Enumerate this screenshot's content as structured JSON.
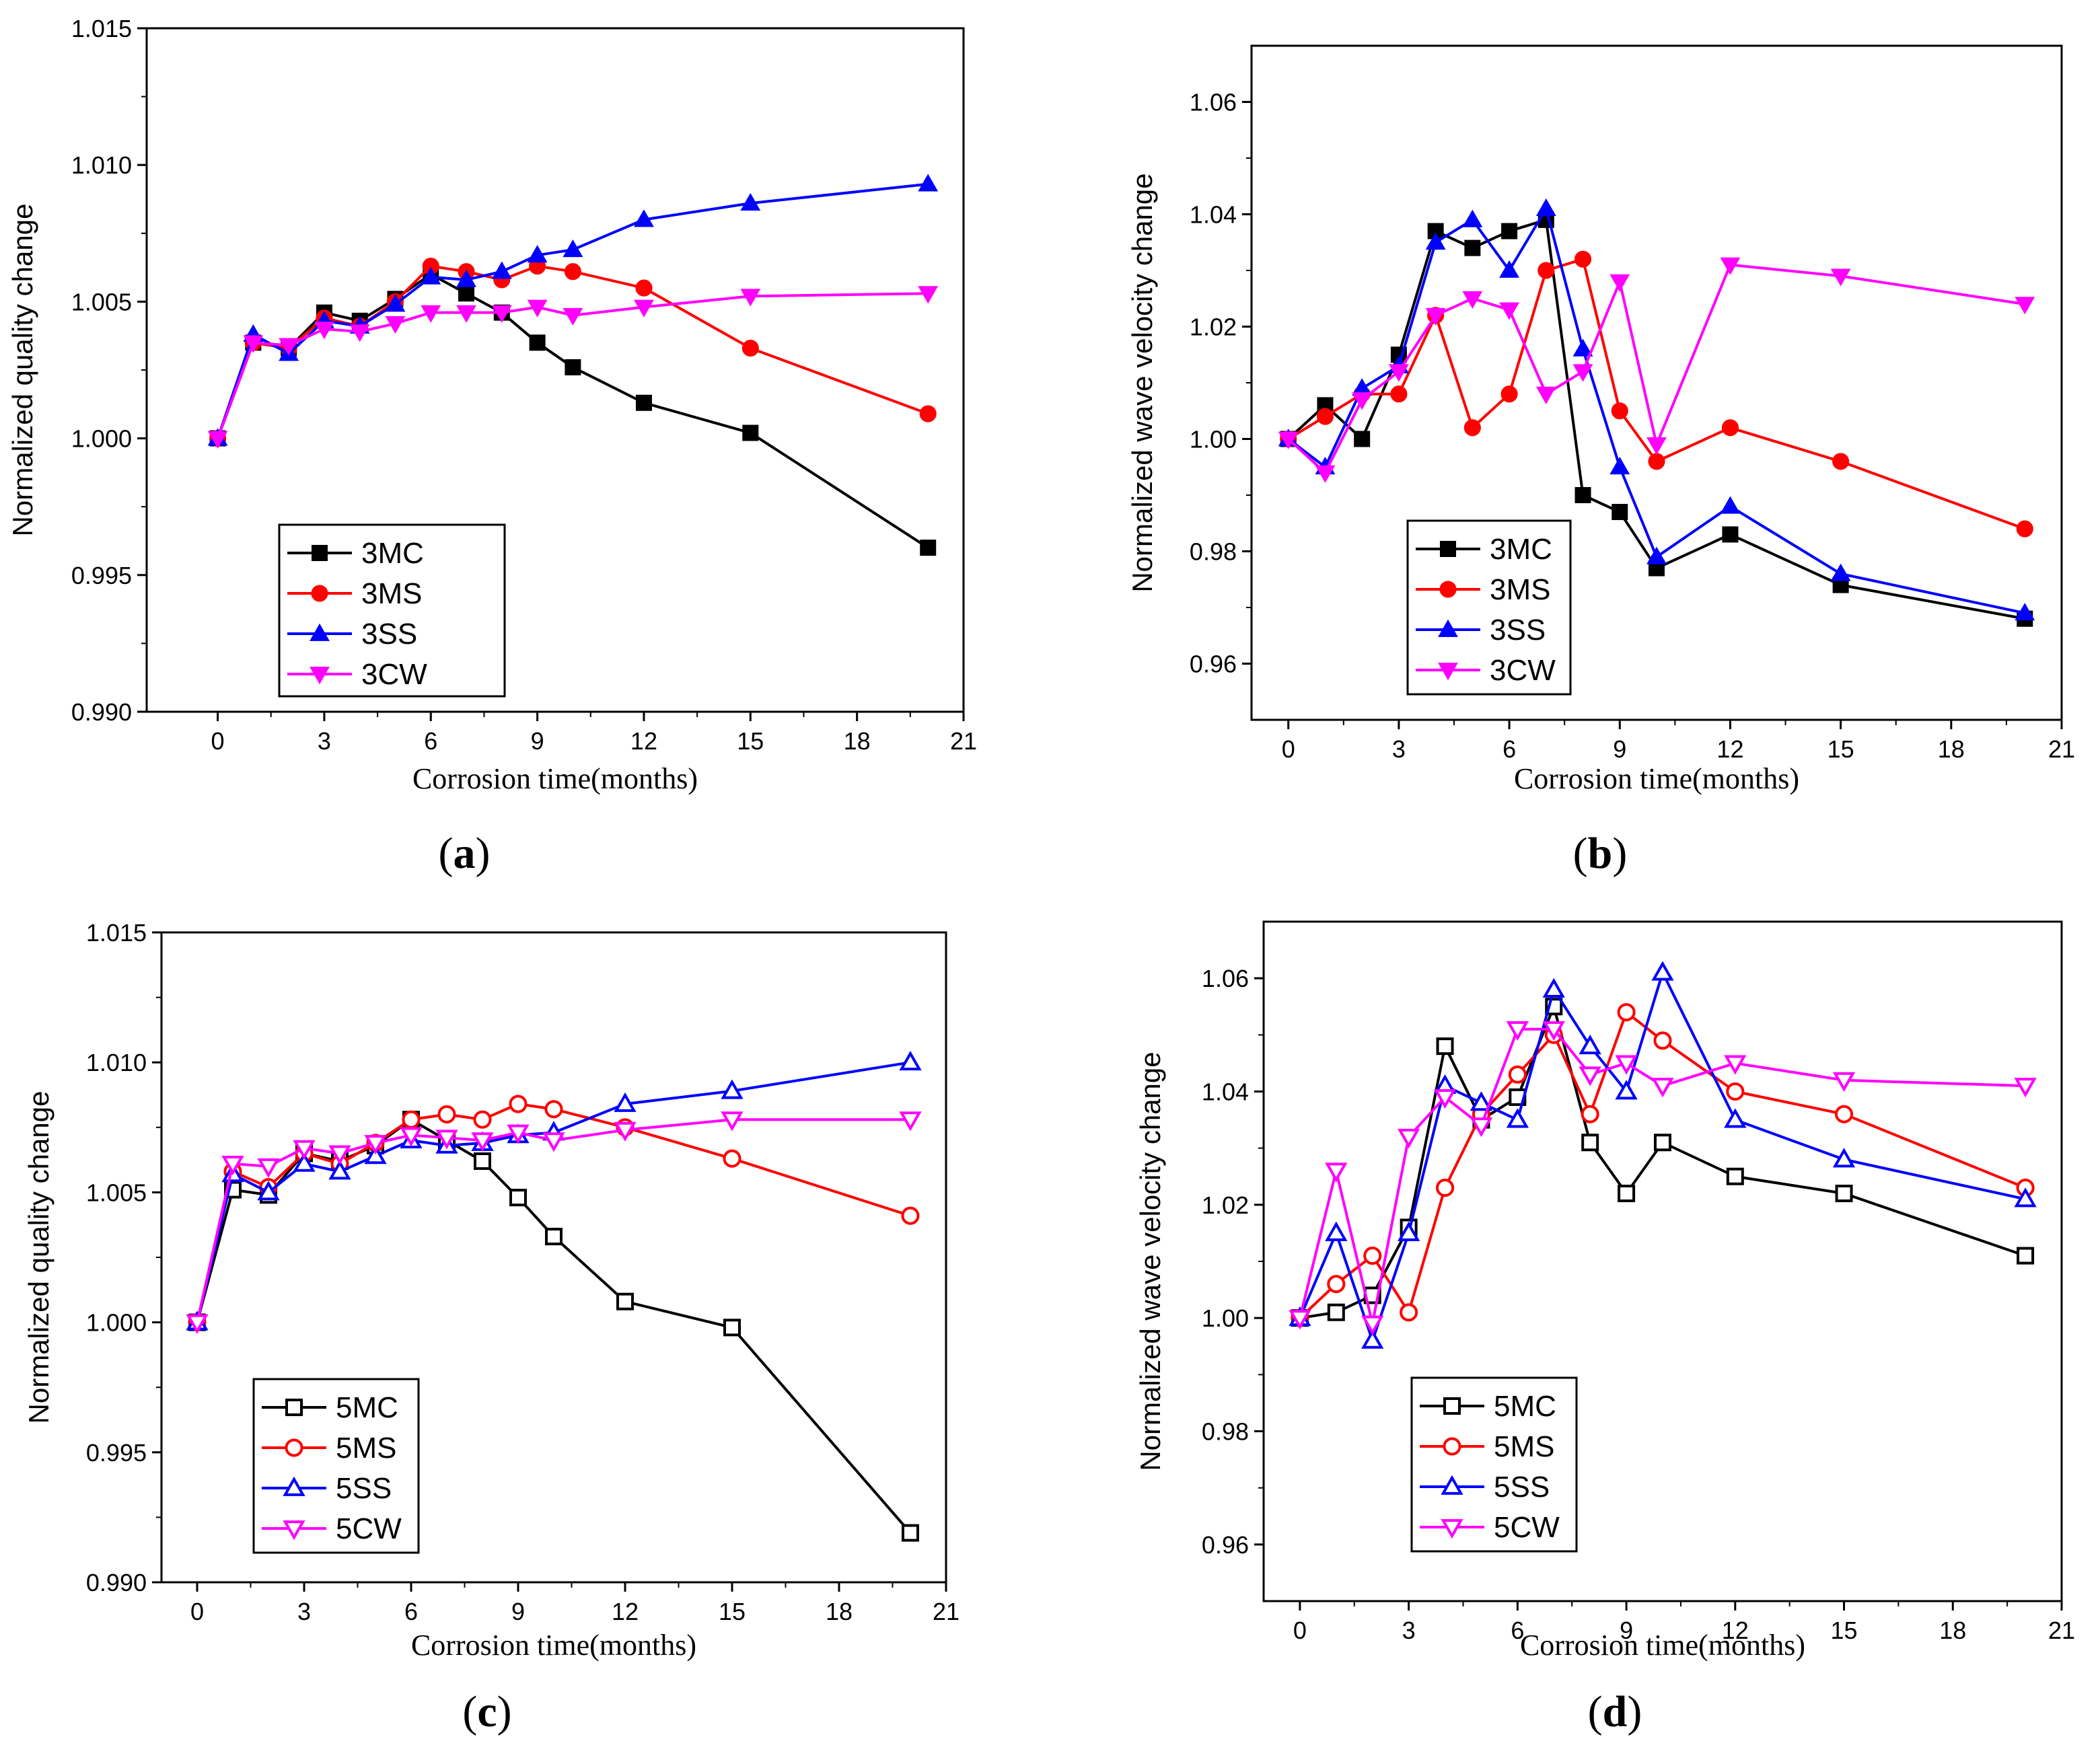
{
  "chart_data": [
    {
      "type": "line",
      "panel_label": "a",
      "xlabel": "Corrosion time(months)",
      "ylabel": "Normalized quality change",
      "xlim": [
        -2,
        21
      ],
      "ylim": [
        0.99,
        1.015
      ],
      "xticks": [
        0,
        3,
        6,
        9,
        12,
        15,
        18,
        21
      ],
      "yticks": [
        0.99,
        0.995,
        1.0,
        1.005,
        1.01,
        1.015
      ],
      "ytick_labels": [
        "0.990",
        "0.995",
        "1.000",
        "1.005",
        "1.010",
        "1.015"
      ],
      "x": [
        0,
        1,
        2,
        3,
        4,
        5,
        6,
        7,
        8,
        9,
        10,
        12,
        15,
        20
      ],
      "legend_position": "bottom-left",
      "series": [
        {
          "name": "3MC",
          "color": "#000000",
          "marker": "square",
          "filled": true,
          "values": [
            1.0,
            1.0035,
            1.0033,
            1.0046,
            1.0043,
            1.0051,
            1.006,
            1.0053,
            1.0046,
            1.0035,
            1.0026,
            1.0013,
            1.0002,
            0.996
          ]
        },
        {
          "name": "3MS",
          "color": "#ff0000",
          "marker": "circle",
          "filled": true,
          "values": [
            1.0,
            1.0035,
            1.0033,
            1.0044,
            1.0041,
            1.005,
            1.0063,
            1.0061,
            1.0058,
            1.0063,
            1.0061,
            1.0055,
            1.0033,
            1.0009
          ]
        },
        {
          "name": "3SS",
          "color": "#0000ff",
          "marker": "triangle-up",
          "filled": true,
          "values": [
            1.0,
            1.0038,
            1.0031,
            1.0043,
            1.0041,
            1.0049,
            1.0059,
            1.0058,
            1.0061,
            1.0067,
            1.0069,
            1.008,
            1.0086,
            1.0093
          ]
        },
        {
          "name": "3CW",
          "color": "#ff00ff",
          "marker": "triangle-down",
          "filled": true,
          "values": [
            1.0,
            1.0035,
            1.0034,
            1.004,
            1.0039,
            1.0042,
            1.0046,
            1.0046,
            1.0046,
            1.0048,
            1.0045,
            1.0048,
            1.0052,
            1.0053
          ]
        }
      ]
    },
    {
      "type": "line",
      "panel_label": "b",
      "xlabel": "Corrosion time(months)",
      "ylabel": "Normalized wave velocity change",
      "xlim": [
        -1,
        21
      ],
      "ylim": [
        0.95,
        1.07
      ],
      "xticks": [
        0,
        3,
        6,
        9,
        12,
        15,
        18,
        21
      ],
      "yticks": [
        0.96,
        0.98,
        1.0,
        1.02,
        1.04,
        1.06
      ],
      "ytick_labels": [
        "0.96",
        "0.98",
        "1.00",
        "1.02",
        "1.04",
        "1.06"
      ],
      "x": [
        0,
        1,
        2,
        3,
        4,
        5,
        6,
        7,
        8,
        9,
        10,
        12,
        15,
        20
      ],
      "legend_position": "bottom-left",
      "series": [
        {
          "name": "3MC",
          "color": "#000000",
          "marker": "square",
          "filled": true,
          "values": [
            1.0,
            1.006,
            1.0,
            1.015,
            1.037,
            1.034,
            1.037,
            1.039,
            0.99,
            0.987,
            0.977,
            0.983,
            0.974,
            0.968
          ]
        },
        {
          "name": "3MS",
          "color": "#ff0000",
          "marker": "circle",
          "filled": true,
          "values": [
            1.0,
            1.004,
            1.008,
            1.008,
            1.022,
            1.002,
            1.008,
            1.03,
            1.032,
            1.005,
            0.996,
            1.002,
            0.996,
            0.984
          ]
        },
        {
          "name": "3SS",
          "color": "#0000ff",
          "marker": "triangle-up",
          "filled": true,
          "values": [
            1.0,
            0.995,
            1.009,
            1.013,
            1.035,
            1.039,
            1.03,
            1.041,
            1.016,
            0.995,
            0.979,
            0.988,
            0.976,
            0.969
          ]
        },
        {
          "name": "3CW",
          "color": "#ff00ff",
          "marker": "triangle-down",
          "filled": true,
          "values": [
            1.0,
            0.994,
            1.007,
            1.012,
            1.022,
            1.025,
            1.023,
            1.008,
            1.012,
            1.028,
            0.999,
            1.031,
            1.029,
            1.024
          ]
        }
      ]
    },
    {
      "type": "line",
      "panel_label": "c",
      "xlabel": "Corrosion time(months)",
      "ylabel": "Normalized quality change",
      "xlim": [
        -1,
        21
      ],
      "ylim": [
        0.99,
        1.015
      ],
      "xticks": [
        0,
        3,
        6,
        9,
        12,
        15,
        18,
        21
      ],
      "yticks": [
        0.99,
        0.995,
        1.0,
        1.005,
        1.01,
        1.015
      ],
      "ytick_labels": [
        "0.990",
        "0.995",
        "1.000",
        "1.005",
        "1.010",
        "1.015"
      ],
      "x": [
        0,
        1,
        2,
        3,
        4,
        5,
        6,
        7,
        8,
        9,
        10,
        12,
        15,
        20
      ],
      "legend_position": "bottom-left",
      "series": [
        {
          "name": "5MC",
          "color": "#000000",
          "marker": "square",
          "filled": false,
          "values": [
            1.0,
            1.0051,
            1.0049,
            1.0065,
            1.0062,
            1.0068,
            1.0078,
            1.007,
            1.0062,
            1.0048,
            1.0033,
            1.0008,
            0.9998,
            0.9919
          ]
        },
        {
          "name": "5MS",
          "color": "#ff0000",
          "marker": "circle",
          "filled": false,
          "values": [
            1.0,
            1.0058,
            1.0052,
            1.0065,
            1.0061,
            1.0069,
            1.0078,
            1.008,
            1.0078,
            1.0084,
            1.0082,
            1.0075,
            1.0063,
            1.0041
          ]
        },
        {
          "name": "5SS",
          "color": "#0000ff",
          "marker": "triangle-up",
          "filled": false,
          "values": [
            1.0,
            1.0057,
            1.005,
            1.0061,
            1.0058,
            1.0064,
            1.007,
            1.0068,
            1.0069,
            1.0072,
            1.0073,
            1.0084,
            1.0089,
            1.01
          ]
        },
        {
          "name": "5CW",
          "color": "#ff00ff",
          "marker": "triangle-down",
          "filled": false,
          "values": [
            1.0,
            1.0061,
            1.006,
            1.0067,
            1.0065,
            1.0069,
            1.0072,
            1.0071,
            1.007,
            1.0073,
            1.007,
            1.0074,
            1.0078,
            1.0078
          ]
        }
      ]
    },
    {
      "type": "line",
      "panel_label": "d",
      "xlabel": "Corrosion time(months)",
      "ylabel": "Normalized wave velocity change",
      "xlim": [
        -1,
        21
      ],
      "ylim": [
        0.95,
        1.07
      ],
      "xticks": [
        0,
        3,
        6,
        9,
        12,
        15,
        18,
        21
      ],
      "yticks": [
        0.96,
        0.98,
        1.0,
        1.02,
        1.04,
        1.06
      ],
      "ytick_labels": [
        "0.96",
        "0.98",
        "1.00",
        "1.02",
        "1.04",
        "1.06"
      ],
      "x": [
        0,
        1,
        2,
        3,
        4,
        5,
        6,
        7,
        8,
        9,
        10,
        12,
        15,
        20
      ],
      "legend_position": "bottom-left",
      "series": [
        {
          "name": "5MC",
          "color": "#000000",
          "marker": "square",
          "filled": false,
          "values": [
            1.0,
            1.001,
            1.004,
            1.016,
            1.048,
            1.035,
            1.039,
            1.055,
            1.031,
            1.022,
            1.031,
            1.025,
            1.022,
            1.011
          ]
        },
        {
          "name": "5MS",
          "color": "#ff0000",
          "marker": "circle",
          "filled": false,
          "values": [
            1.0,
            1.006,
            1.011,
            1.001,
            1.023,
            1.036,
            1.043,
            1.05,
            1.036,
            1.054,
            1.049,
            1.04,
            1.036,
            1.023
          ]
        },
        {
          "name": "5SS",
          "color": "#0000ff",
          "marker": "triangle-up",
          "filled": false,
          "values": [
            1.0,
            1.015,
            0.996,
            1.015,
            1.041,
            1.038,
            1.035,
            1.058,
            1.048,
            1.04,
            1.061,
            1.035,
            1.028,
            1.021
          ]
        },
        {
          "name": "5CW",
          "color": "#ff00ff",
          "marker": "triangle-down",
          "filled": false,
          "values": [
            1.0,
            1.026,
            0.999,
            1.032,
            1.039,
            1.034,
            1.051,
            1.051,
            1.043,
            1.045,
            1.041,
            1.045,
            1.042,
            1.041
          ]
        }
      ]
    }
  ]
}
